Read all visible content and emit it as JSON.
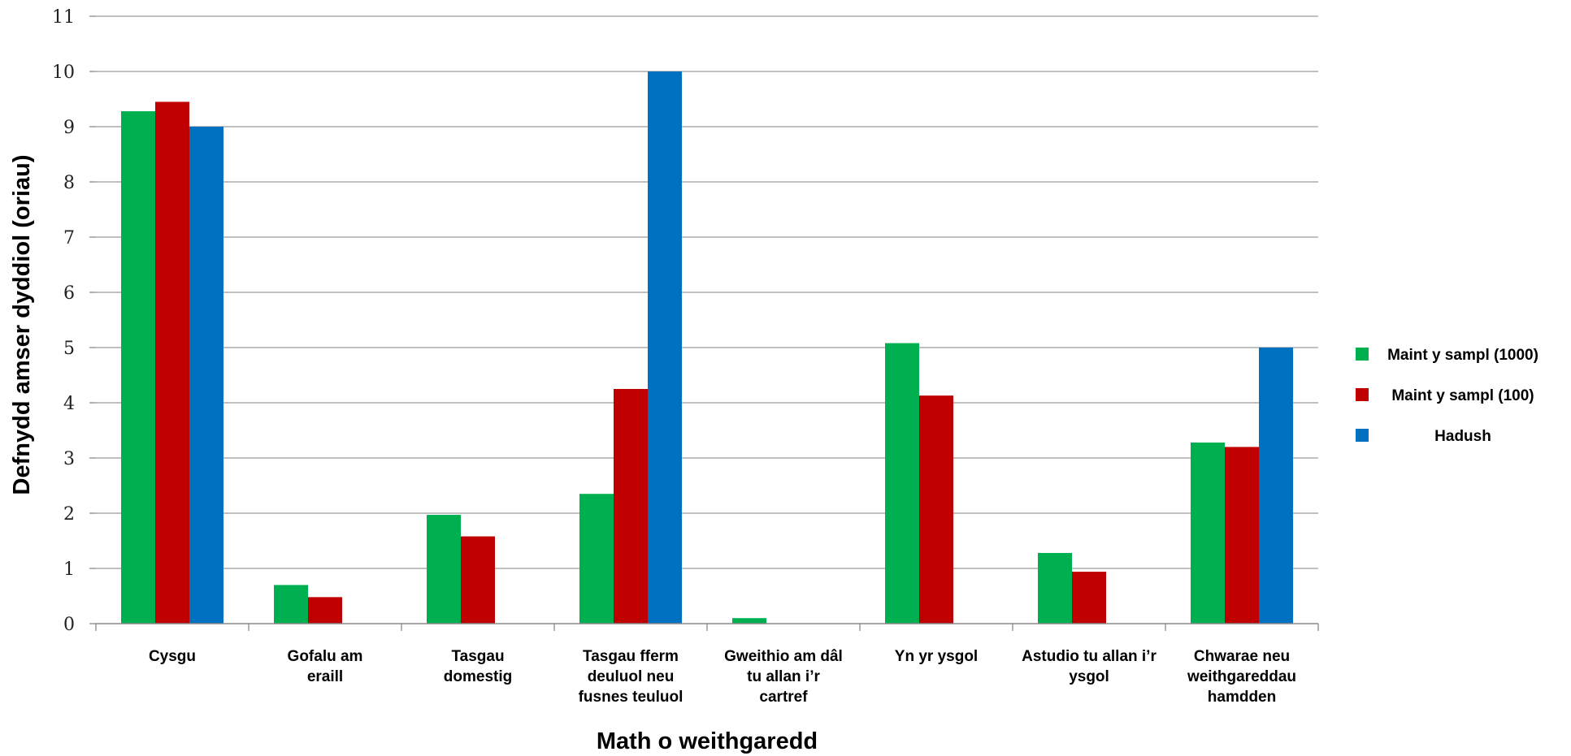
{
  "chart_data": {
    "type": "bar",
    "xlabel": "Math o weithgaredd",
    "ylabel": "Defnydd amser dyddiol (oriau)",
    "ylim": [
      0,
      11
    ],
    "yticks": [
      0,
      1,
      2,
      3,
      4,
      5,
      6,
      7,
      8,
      9,
      10,
      11
    ],
    "grid": true,
    "legend_position": "right",
    "categories": [
      [
        "Cysgu"
      ],
      [
        "Gofalu am",
        "eraill"
      ],
      [
        "Tasgau",
        "domestig"
      ],
      [
        "Tasgau fferm",
        "deuluol neu",
        "fusnes teuluol"
      ],
      [
        "Gweithio am dâl",
        "tu allan i’r",
        "cartref"
      ],
      [
        "Yn yr ysgol"
      ],
      [
        "Astudio tu allan i’r",
        "ysgol"
      ],
      [
        "Chwarae neu",
        "weithgareddau",
        "hamdden"
      ]
    ],
    "series": [
      {
        "name": "Maint y sampl (1000)",
        "color": "#00b050",
        "values": [
          9.28,
          0.7,
          1.97,
          2.35,
          0.1,
          5.08,
          1.28,
          3.28
        ]
      },
      {
        "name": "Maint y sampl (100)",
        "color": "#c00000",
        "values": [
          9.45,
          0.48,
          1.58,
          4.25,
          0,
          4.13,
          0.94,
          3.2
        ]
      },
      {
        "name": "Hadush",
        "color": "#0070c0",
        "values": [
          9.0,
          0,
          0,
          10.0,
          0,
          0,
          0,
          5.0
        ]
      }
    ]
  }
}
